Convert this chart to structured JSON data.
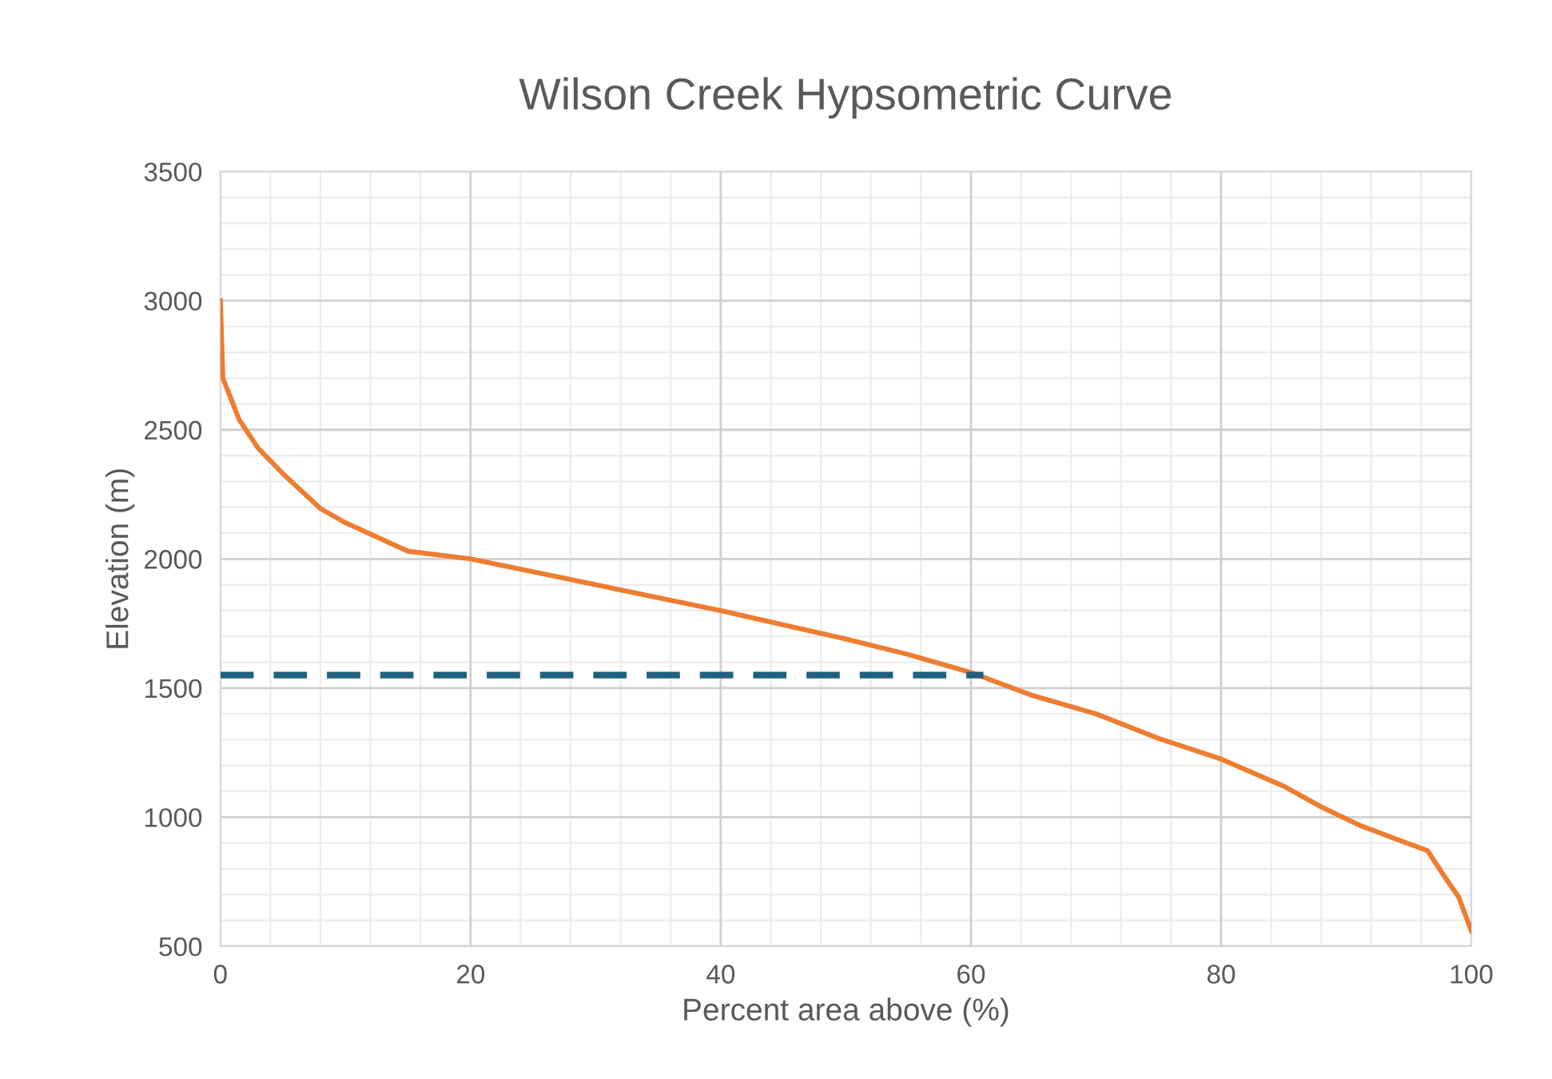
{
  "chart_data": {
    "type": "line",
    "title": "Wilson Creek Hypsometric Curve",
    "xlabel": "Percent area above (%)",
    "ylabel": "Elevation (m)",
    "xlim": [
      0,
      100
    ],
    "xticks": [
      0,
      20,
      40,
      60,
      80,
      100
    ],
    "ylim": [
      500,
      3500
    ],
    "yticks": [
      500,
      1000,
      1500,
      2000,
      2500,
      3000,
      3500
    ],
    "grid": true,
    "legend": false,
    "series": [
      {
        "color": "#ed7d31",
        "x": [
          0,
          0.2,
          1.5,
          3,
          5,
          8,
          10,
          15,
          20,
          30,
          40,
          50,
          55,
          60,
          65,
          70,
          75,
          80,
          85,
          88,
          91,
          94,
          96.5,
          98,
          99,
          100
        ],
        "values": [
          3000,
          2700,
          2540,
          2430,
          2330,
          2195,
          2140,
          2030,
          2000,
          1900,
          1800,
          1690,
          1630,
          1560,
          1470,
          1400,
          1305,
          1225,
          1120,
          1040,
          970,
          915,
          870,
          760,
          690,
          560
        ]
      },
      {
        "color": "#1f5f7f",
        "line_style": "dashed",
        "x": [
          0,
          61
        ],
        "values": [
          1550,
          1550
        ]
      }
    ]
  }
}
